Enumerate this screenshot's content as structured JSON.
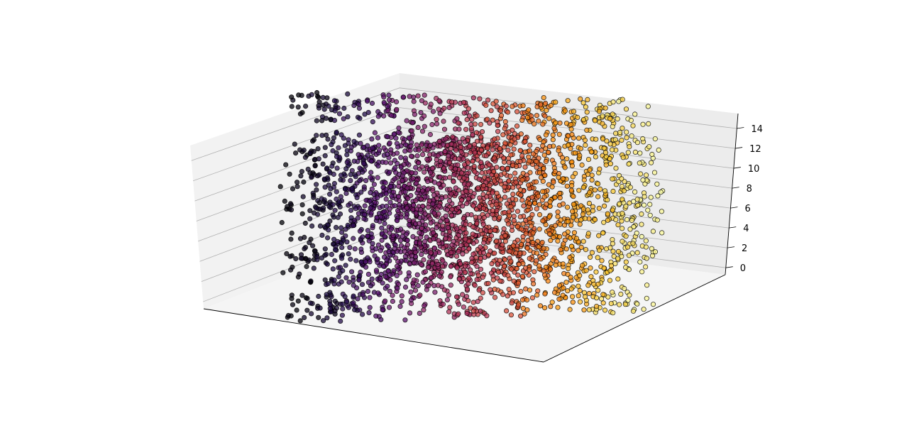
{
  "chart_data": {
    "type": "scatter",
    "projection": "3d",
    "title": "",
    "xlabel": "",
    "ylabel": "",
    "zlabel": "",
    "x_ticks_visible": false,
    "y_ticks_visible": false,
    "z_ticks": [
      "0",
      "2",
      "4",
      "6",
      "8",
      "10",
      "12",
      "14"
    ],
    "zlim": [
      -0.7,
      15.5
    ],
    "grid": true,
    "colormap": "inferno",
    "marker_edgecolor": "#000000",
    "marker_alpha": 0.75,
    "pane_color": "#f2f2f2",
    "description_of_data": "Points scattered on the surface of a vertical cylinder, swept as a spiral ribbon; colour follows angular position (inferno colormap, dark to yellow).",
    "x_range": [
      -1,
      1
    ],
    "y_range": [
      -1,
      1
    ],
    "z_range": [
      0,
      15
    ],
    "n_points": 4000
  }
}
